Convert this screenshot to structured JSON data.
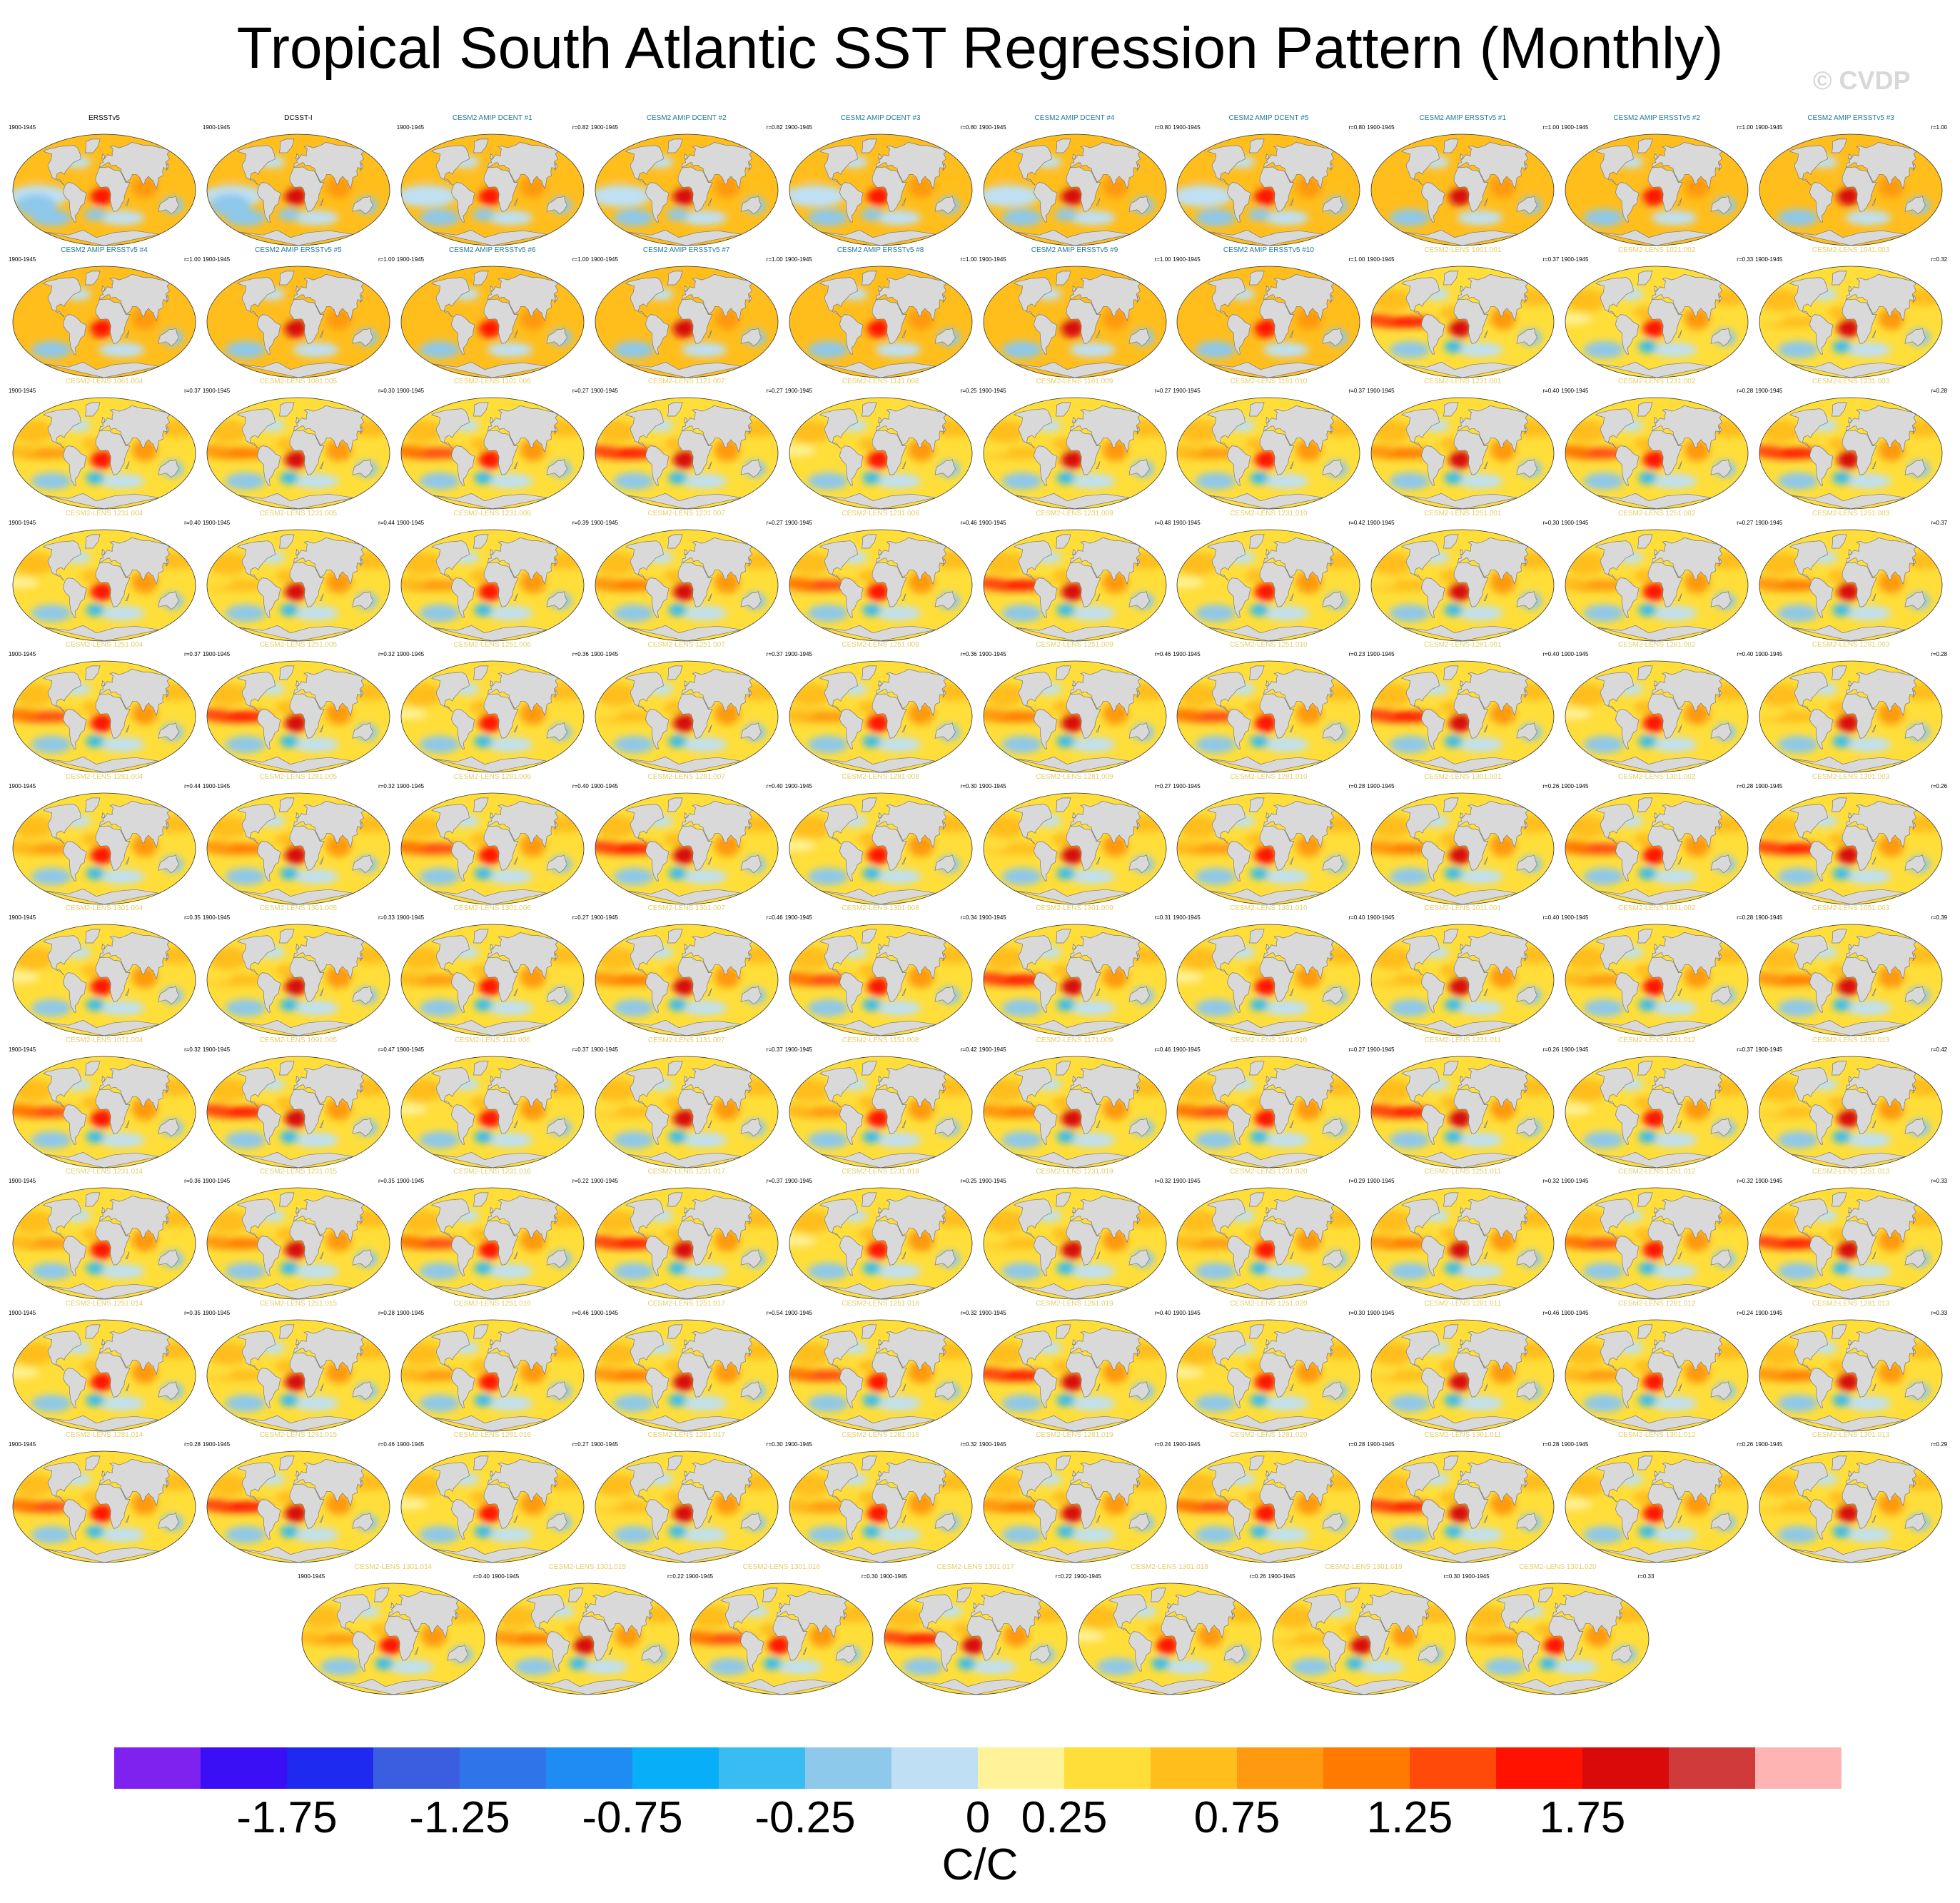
{
  "title": "Tropical South Atlantic SST Regression Pattern (Monthly)",
  "watermark": "© CVDP",
  "chart_data": {
    "type": "heatmap",
    "period": "1900-1945",
    "units_label": "C/C",
    "colorbar": {
      "colors": [
        "#7f22f0",
        "#3a0ff5",
        "#1f2af0",
        "#3b5ee0",
        "#2f74e8",
        "#1e8cf2",
        "#08aef7",
        "#38bcf2",
        "#8ec8ea",
        "#bfe0f4",
        "#fff39a",
        "#ffde3a",
        "#ffbe1c",
        "#ff9a10",
        "#ff7a00",
        "#ff4a0a",
        "#ff1200",
        "#d80a0a",
        "#d03a3a",
        "#ffb4b4"
      ],
      "tick_labels": [
        "-1.75",
        "-1.25",
        "-0.75",
        "-0.25",
        "0",
        "0.25",
        "0.75",
        "1.25",
        "1.75"
      ]
    },
    "panels": [
      {
        "name": "ERSSTv5",
        "r": "",
        "obs": true
      },
      {
        "name": "DCSST-I",
        "r": "",
        "obs": true
      },
      {
        "name": "CESM2 AMIP DCENT #1",
        "r": "r=0.82",
        "obs": false
      },
      {
        "name": "CESM2 AMIP DCENT #2",
        "r": "r=0.82",
        "obs": false
      },
      {
        "name": "CESM2 AMIP DCENT #3",
        "r": "r=0.80",
        "obs": false
      },
      {
        "name": "CESM2 AMIP DCENT #4",
        "r": "r=0.80",
        "obs": false
      },
      {
        "name": "CESM2 AMIP DCENT #5",
        "r": "r=0.80",
        "obs": false
      },
      {
        "name": "CESM2 AMIP ERSSTv5 #1",
        "r": "r=1.00",
        "obs": false
      },
      {
        "name": "CESM2 AMIP ERSSTv5 #2",
        "r": "r=1.00",
        "obs": false
      },
      {
        "name": "CESM2 AMIP ERSSTv5 #3",
        "r": "r=1.00",
        "obs": false
      },
      {
        "name": "CESM2 AMIP ERSSTv5 #4",
        "r": "r=1.00",
        "obs": false
      },
      {
        "name": "CESM2 AMIP ERSSTv5 #5",
        "r": "r=1.00",
        "obs": false
      },
      {
        "name": "CESM2 AMIP ERSSTv5 #6",
        "r": "r=1.00",
        "obs": false
      },
      {
        "name": "CESM2 AMIP ERSSTv5 #7",
        "r": "r=1.00",
        "obs": false
      },
      {
        "name": "CESM2 AMIP ERSSTv5 #8",
        "r": "r=1.00",
        "obs": false
      },
      {
        "name": "CESM2 AMIP ERSSTv5 #9",
        "r": "r=1.00",
        "obs": false
      },
      {
        "name": "CESM2 AMIP ERSSTv5 #10",
        "r": "r=1.00",
        "obs": false
      },
      {
        "name": "CESM2-LENS 1001.001",
        "r": "r=0.37",
        "obs": false
      },
      {
        "name": "CESM2-LENS 1021.002",
        "r": "r=0.33",
        "obs": false
      },
      {
        "name": "CESM2-LENS 1041.003",
        "r": "r=0.32",
        "obs": false
      },
      {
        "name": "CESM2-LENS 1061.004",
        "r": "r=0.37",
        "obs": false
      },
      {
        "name": "CESM2-LENS 1081.005",
        "r": "r=0.30",
        "obs": false
      },
      {
        "name": "CESM2-LENS 1101.006",
        "r": "r=0.27",
        "obs": false
      },
      {
        "name": "CESM2-LENS 1121.007",
        "r": "r=0.27",
        "obs": false
      },
      {
        "name": "CESM2-LENS 1141.008",
        "r": "r=0.25",
        "obs": false
      },
      {
        "name": "CESM2-LENS 1161.009",
        "r": "r=0.27",
        "obs": false
      },
      {
        "name": "CESM2-LENS 1181.010",
        "r": "r=0.37",
        "obs": false
      },
      {
        "name": "CESM2-LENS 1231.001",
        "r": "r=0.40",
        "obs": false
      },
      {
        "name": "CESM2-LENS 1231.002",
        "r": "r=0.28",
        "obs": false
      },
      {
        "name": "CESM2-LENS 1231.003",
        "r": "r=0.28",
        "obs": false
      },
      {
        "name": "CESM2-LENS 1231.004",
        "r": "r=0.40",
        "obs": false
      },
      {
        "name": "CESM2-LENS 1231.005",
        "r": "r=0.44",
        "obs": false
      },
      {
        "name": "CESM2-LENS 1231.006",
        "r": "r=0.39",
        "obs": false
      },
      {
        "name": "CESM2-LENS 1231.007",
        "r": "r=0.27",
        "obs": false
      },
      {
        "name": "CESM2-LENS 1231.008",
        "r": "r=0.46",
        "obs": false
      },
      {
        "name": "CESM2-LENS 1231.009",
        "r": "r=0.48",
        "obs": false
      },
      {
        "name": "CESM2-LENS 1231.010",
        "r": "r=0.42",
        "obs": false
      },
      {
        "name": "CESM2-LENS 1251.001",
        "r": "r=0.30",
        "obs": false
      },
      {
        "name": "CESM2-LENS 1251.002",
        "r": "r=0.27",
        "obs": false
      },
      {
        "name": "CESM2-LENS 1251.003",
        "r": "r=0.37",
        "obs": false
      },
      {
        "name": "CESM2-LENS 1251.004",
        "r": "r=0.37",
        "obs": false
      },
      {
        "name": "CESM2-LENS 1251.005",
        "r": "r=0.32",
        "obs": false
      },
      {
        "name": "CESM2-LENS 1251.006",
        "r": "r=0.36",
        "obs": false
      },
      {
        "name": "CESM2-LENS 1251.007",
        "r": "r=0.37",
        "obs": false
      },
      {
        "name": "CESM2-LENS 1251.008",
        "r": "r=0.36",
        "obs": false
      },
      {
        "name": "CESM2-LENS 1251.009",
        "r": "r=0.46",
        "obs": false
      },
      {
        "name": "CESM2-LENS 1251.010",
        "r": "r=0.23",
        "obs": false
      },
      {
        "name": "CESM2-LENS 1281.001",
        "r": "r=0.40",
        "obs": false
      },
      {
        "name": "CESM2-LENS 1281.002",
        "r": "r=0.40",
        "obs": false
      },
      {
        "name": "CESM2-LENS 1281.003",
        "r": "r=0.28",
        "obs": false
      },
      {
        "name": "CESM2-LENS 1281.004",
        "r": "r=0.44",
        "obs": false
      },
      {
        "name": "CESM2-LENS 1281.005",
        "r": "r=0.32",
        "obs": false
      },
      {
        "name": "CESM2-LENS 1281.006",
        "r": "r=0.40",
        "obs": false
      },
      {
        "name": "CESM2-LENS 1281.007",
        "r": "r=0.40",
        "obs": false
      },
      {
        "name": "CESM2-LENS 1281.008",
        "r": "r=0.30",
        "obs": false
      },
      {
        "name": "CESM2-LENS 1281.009",
        "r": "r=0.27",
        "obs": false
      },
      {
        "name": "CESM2-LENS 1281.010",
        "r": "r=0.28",
        "obs": false
      },
      {
        "name": "CESM2-LENS 1301.001",
        "r": "r=0.26",
        "obs": false
      },
      {
        "name": "CESM2-LENS 1301.002",
        "r": "r=0.28",
        "obs": false
      },
      {
        "name": "CESM2-LENS 1301.003",
        "r": "r=0.26",
        "obs": false
      },
      {
        "name": "CESM2-LENS 1301.004",
        "r": "r=0.35",
        "obs": false
      },
      {
        "name": "CESM2-LENS 1301.005",
        "r": "r=0.33",
        "obs": false
      },
      {
        "name": "CESM2-LENS 1301.006",
        "r": "r=0.27",
        "obs": false
      },
      {
        "name": "CESM2-LENS 1301.007",
        "r": "r=0.46",
        "obs": false
      },
      {
        "name": "CESM2-LENS 1301.008",
        "r": "r=0.34",
        "obs": false
      },
      {
        "name": "CESM2-LENS 1301.009",
        "r": "r=0.31",
        "obs": false
      },
      {
        "name": "CESM2-LENS 1301.010",
        "r": "r=0.40",
        "obs": false
      },
      {
        "name": "CESM2-LENS 1011.001",
        "r": "r=0.40",
        "obs": false
      },
      {
        "name": "CESM2-LENS 1031.002",
        "r": "r=0.28",
        "obs": false
      },
      {
        "name": "CESM2-LENS 1051.003",
        "r": "r=0.39",
        "obs": false
      },
      {
        "name": "CESM2-LENS 1071.004",
        "r": "r=0.32",
        "obs": false
      },
      {
        "name": "CESM2-LENS 1091.005",
        "r": "r=0.47",
        "obs": false
      },
      {
        "name": "CESM2-LENS 1111.006",
        "r": "r=0.37",
        "obs": false
      },
      {
        "name": "CESM2-LENS 1131.007",
        "r": "r=0.37",
        "obs": false
      },
      {
        "name": "CESM2-LENS 1151.008",
        "r": "r=0.42",
        "obs": false
      },
      {
        "name": "CESM2-LENS 1171.009",
        "r": "r=0.46",
        "obs": false
      },
      {
        "name": "CESM2-LENS 1191.010",
        "r": "r=0.27",
        "obs": false
      },
      {
        "name": "CESM2-LENS 1231.011",
        "r": "r=0.26",
        "obs": false
      },
      {
        "name": "CESM2-LENS 1231.012",
        "r": "r=0.37",
        "obs": false
      },
      {
        "name": "CESM2-LENS 1231.013",
        "r": "r=0.42",
        "obs": false
      },
      {
        "name": "CESM2-LENS 1231.014",
        "r": "r=0.36",
        "obs": false
      },
      {
        "name": "CESM2-LENS 1231.015",
        "r": "r=0.35",
        "obs": false
      },
      {
        "name": "CESM2-LENS 1231.016",
        "r": "r=0.22",
        "obs": false
      },
      {
        "name": "CESM2-LENS 1231.017",
        "r": "r=0.37",
        "obs": false
      },
      {
        "name": "CESM2-LENS 1231.018",
        "r": "r=0.25",
        "obs": false
      },
      {
        "name": "CESM2-LENS 1231.019",
        "r": "r=0.32",
        "obs": false
      },
      {
        "name": "CESM2-LENS 1231.020",
        "r": "r=0.29",
        "obs": false
      },
      {
        "name": "CESM2-LENS 1251.011",
        "r": "r=0.32",
        "obs": false
      },
      {
        "name": "CESM2-LENS 1251.012",
        "r": "r=0.32",
        "obs": false
      },
      {
        "name": "CESM2-LENS 1251.013",
        "r": "r=0.33",
        "obs": false
      },
      {
        "name": "CESM2-LENS 1251.014",
        "r": "r=0.35",
        "obs": false
      },
      {
        "name": "CESM2-LENS 1251.015",
        "r": "r=0.28",
        "obs": false
      },
      {
        "name": "CESM2-LENS 1251.016",
        "r": "r=0.46",
        "obs": false
      },
      {
        "name": "CESM2-LENS 1251.017",
        "r": "r=0.54",
        "obs": false
      },
      {
        "name": "CESM2-LENS 1251.018",
        "r": "r=0.32",
        "obs": false
      },
      {
        "name": "CESM2-LENS 1251.019",
        "r": "r=0.40",
        "obs": false
      },
      {
        "name": "CESM2-LENS 1251.020",
        "r": "r=0.30",
        "obs": false
      },
      {
        "name": "CESM2-LENS 1281.011",
        "r": "r=0.46",
        "obs": false
      },
      {
        "name": "CESM2-LENS 1281.012",
        "r": "r=0.24",
        "obs": false
      },
      {
        "name": "CESM2-LENS 1281.013",
        "r": "r=0.33",
        "obs": false
      },
      {
        "name": "CESM2-LENS 1281.014",
        "r": "r=0.28",
        "obs": false
      },
      {
        "name": "CESM2-LENS 1281.015",
        "r": "r=0.46",
        "obs": false
      },
      {
        "name": "CESM2-LENS 1281.016",
        "r": "r=0.27",
        "obs": false
      },
      {
        "name": "CESM2-LENS 1281.017",
        "r": "r=0.30",
        "obs": false
      },
      {
        "name": "CESM2-LENS 1281.018",
        "r": "r=0.32",
        "obs": false
      },
      {
        "name": "CESM2-LENS 1281.019",
        "r": "r=0.24",
        "obs": false
      },
      {
        "name": "CESM2-LENS 1281.020",
        "r": "r=0.28",
        "obs": false
      },
      {
        "name": "CESM2-LENS 1301.011",
        "r": "r=0.28",
        "obs": false
      },
      {
        "name": "CESM2-LENS 1301.012",
        "r": "r=0.26",
        "obs": false
      },
      {
        "name": "CESM2-LENS 1301.013",
        "r": "r=0.29",
        "obs": false
      },
      {
        "name": "CESM2-LENS 1301.014",
        "r": "r=0.40",
        "obs": false
      },
      {
        "name": "CESM2-LENS 1301.015",
        "r": "r=0.22",
        "obs": false
      },
      {
        "name": "CESM2-LENS 1301.016",
        "r": "r=0.30",
        "obs": false
      },
      {
        "name": "CESM2-LENS 1301.017",
        "r": "r=0.22",
        "obs": false
      },
      {
        "name": "CESM2-LENS 1301.018",
        "r": "r=0.26",
        "obs": false
      },
      {
        "name": "CESM2-LENS 1301.019",
        "r": "r=0.30",
        "obs": false
      },
      {
        "name": "CESM2-LENS 1301.020",
        "r": "r=0.33",
        "obs": false
      }
    ]
  }
}
